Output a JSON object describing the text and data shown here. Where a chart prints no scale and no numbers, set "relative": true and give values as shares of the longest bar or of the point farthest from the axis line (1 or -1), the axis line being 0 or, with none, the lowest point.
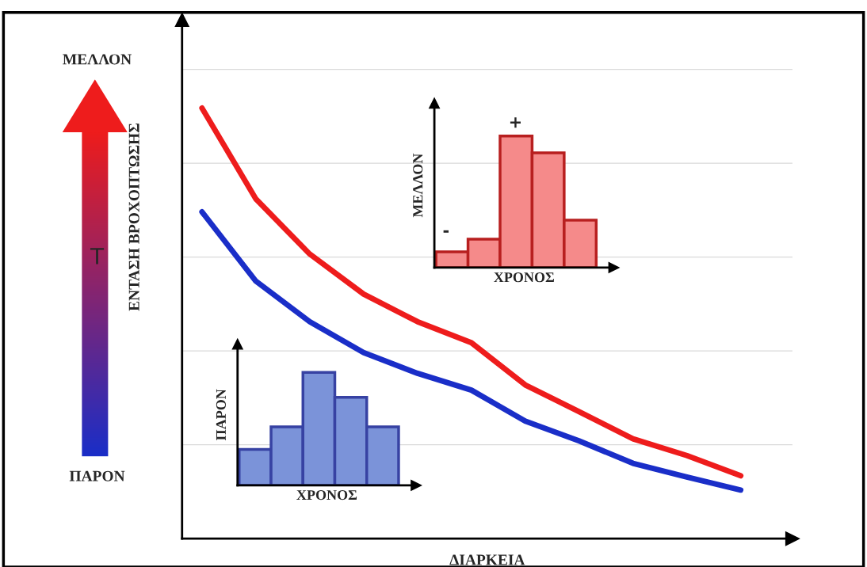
{
  "chart_data": [
    {
      "type": "line",
      "relative": true,
      "xlabel": "ΔΙΑΡΚΕΙΑ",
      "ylabel": "ΕΝΤΑΣΗ ΒΡΟΧΟΠΤΩΣΗΣ",
      "grid": "y",
      "legend": false,
      "categories": [
        null,
        null,
        null,
        null,
        null,
        null,
        null,
        null,
        null,
        null,
        null
      ],
      "series": [
        {
          "color": "#ee1c1c",
          "values": [
            1,
            0.789,
            0.661,
            0.568,
            0.504,
            0.455,
            0.357,
            0.295,
            0.232,
            0.193,
            0.146
          ]
        },
        {
          "color": "#1a2ec8",
          "values": [
            0.759,
            0.598,
            0.504,
            0.432,
            0.384,
            0.345,
            0.273,
            0.227,
            0.175,
            0.143,
            0.113
          ]
        }
      ],
      "annotations": [
        "ΜΕΛΛΟΝ",
        "T",
        "ΠΑΡΟΝ"
      ]
    },
    {
      "type": "bar",
      "relative": true,
      "xlabel": "ΧΡΟΝΟΣ",
      "ylabel": "ΠΑΡΟΝ",
      "categories": [
        null,
        null,
        null,
        null,
        null
      ],
      "values": [
        0.319,
        0.518,
        1,
        0.78,
        0.518
      ],
      "color": "#7b93d9"
    },
    {
      "type": "bar",
      "relative": true,
      "xlabel": "ΧΡΟΝΟΣ",
      "ylabel": "ΜΕΛΛΟΝ",
      "categories": [
        null,
        null,
        null,
        null,
        null
      ],
      "values": [
        0.12,
        0.217,
        1,
        0.873,
        0.361
      ],
      "color": "#f58a8a",
      "annotations": [
        "+",
        "-"
      ]
    }
  ]
}
